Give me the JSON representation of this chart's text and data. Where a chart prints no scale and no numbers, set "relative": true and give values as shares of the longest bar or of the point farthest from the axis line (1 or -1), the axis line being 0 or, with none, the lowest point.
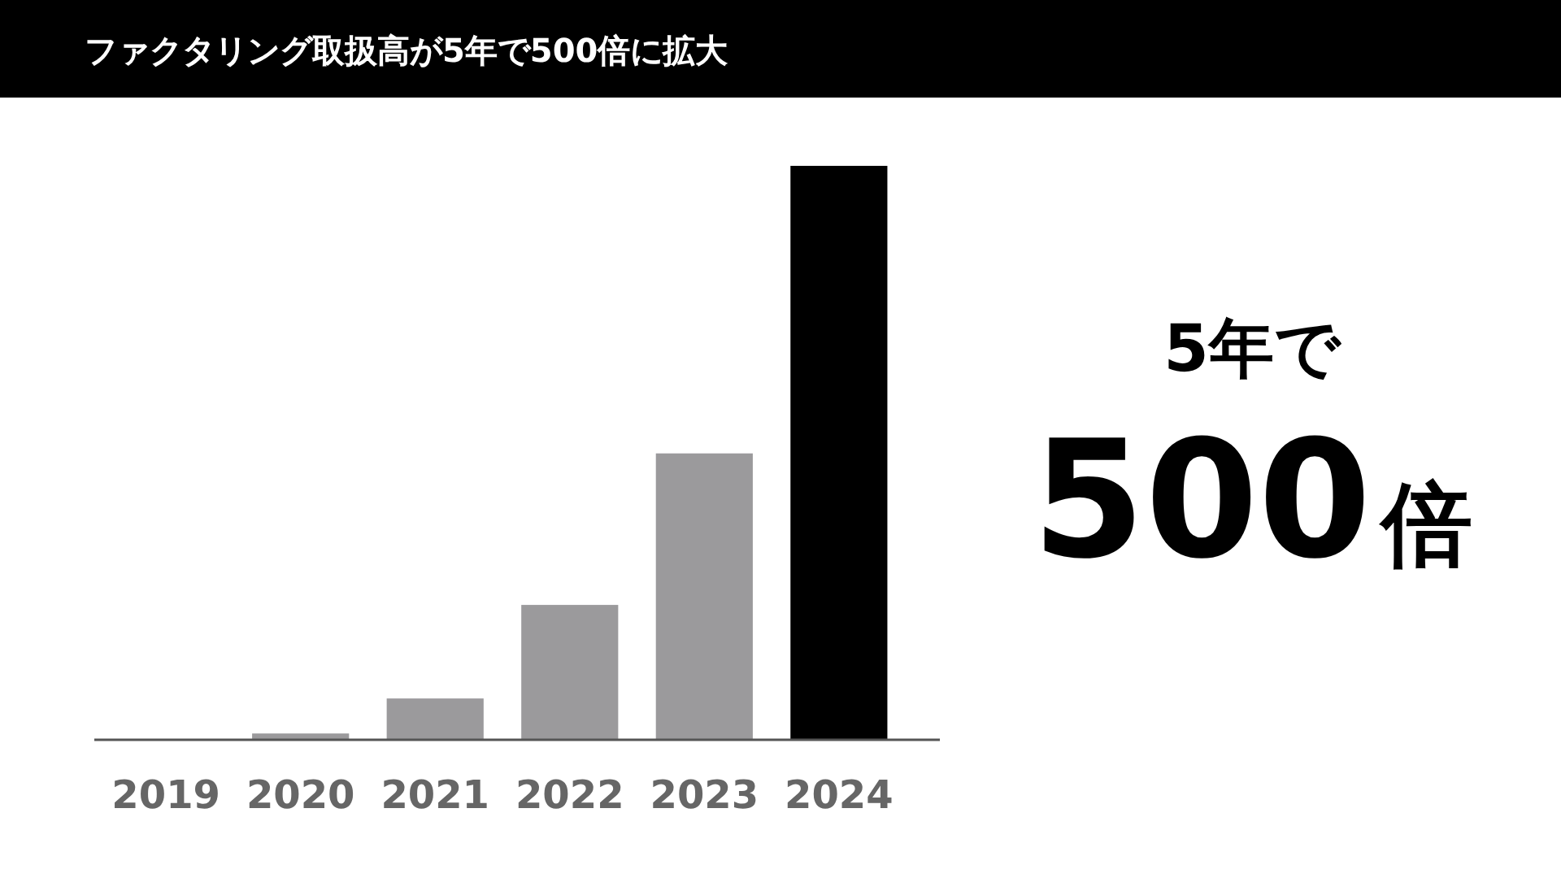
{
  "chart_data": {
    "type": "bar",
    "title": "ファクタリング取扱高が5年で500倍に拡大",
    "relative": true,
    "categories": [
      "2019",
      "2020",
      "2021",
      "2022",
      "2023",
      "2024"
    ],
    "values": [
      null,
      0.011,
      0.072,
      0.235,
      0.499,
      1
    ],
    "colors": [
      null,
      "#9b9a9c",
      "#9b9a9c",
      "#9b9a9c",
      "#9b9a9c",
      "#000000"
    ],
    "annotations": [
      "5年で",
      "500倍"
    ]
  }
}
